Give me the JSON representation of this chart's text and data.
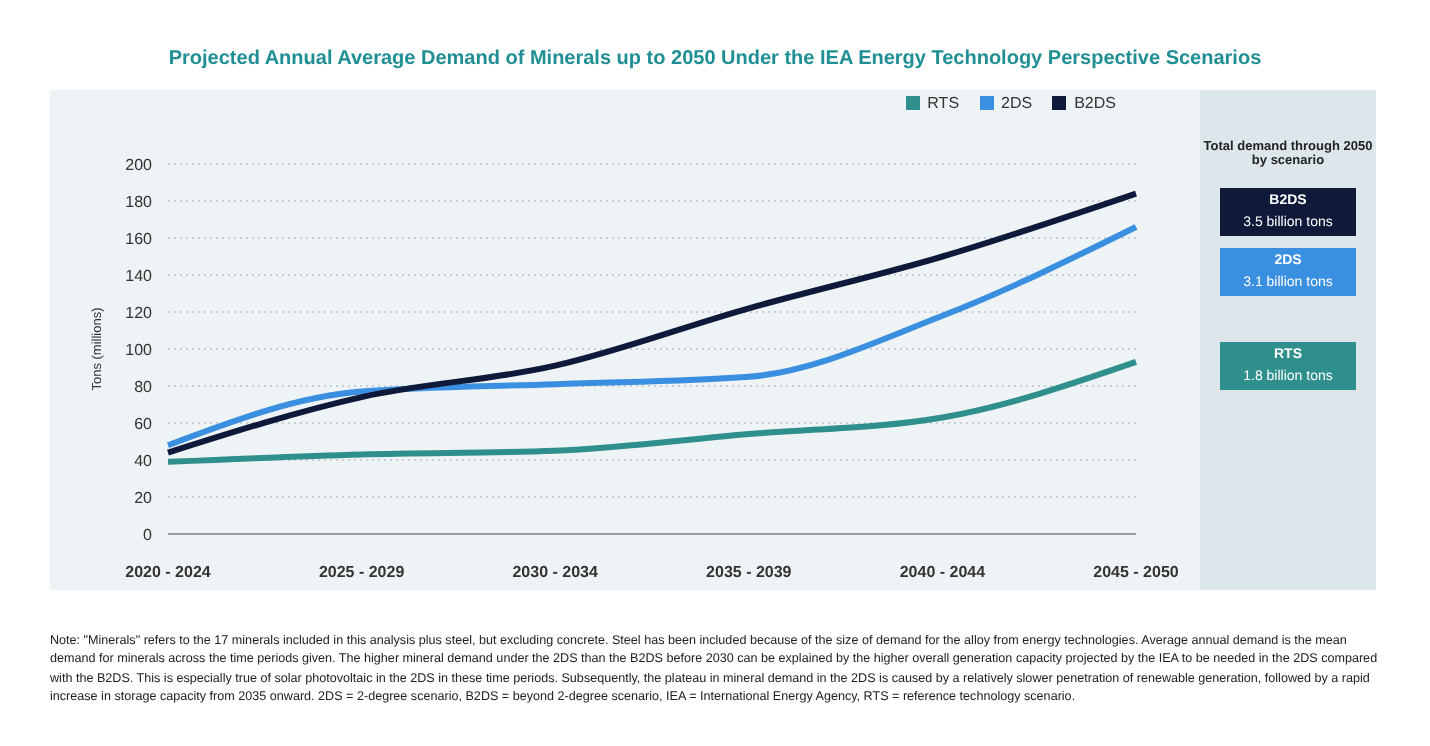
{
  "chart_data": {
    "type": "line",
    "title": "Projected Annual Average Demand of Minerals up to 2050 Under the IEA Energy Technology Perspective Scenarios",
    "ylabel": "Tons (millions)",
    "categories": [
      "2020 - 2024",
      "2025 - 2029",
      "2030 - 2034",
      "2035 - 2039",
      "2040 - 2044",
      "2045 - 2050"
    ],
    "series": [
      {
        "name": "RTS",
        "color": "#2f8f8c",
        "values": [
          39,
          43,
          45,
          54,
          63,
          93
        ]
      },
      {
        "name": "2DS",
        "color": "#3a8fe0",
        "values": [
          48,
          77,
          81,
          85,
          118,
          166
        ]
      },
      {
        "name": "B2DS",
        "color": "#0f1a3a",
        "values": [
          44,
          74,
          91,
          122,
          150,
          184
        ]
      }
    ],
    "ylim": [
      0,
      200
    ],
    "yticks": [
      0,
      20,
      40,
      60,
      80,
      100,
      120,
      140,
      160,
      180,
      200
    ],
    "grid": "y",
    "legend": "top right",
    "marker": "none",
    "line_style": "solid",
    "annotations": [
      "Total demand through 2050 by scenario",
      "B2DS\n3.5 billion tons",
      "2DS\n3.1 billion tons",
      "RTS\n1.8 billion tons",
      "Note: \"Minerals\" refers to the 17 minerals included in this analysis plus steel, but excluding concrete. Steel has been included because of the size of demand for the alloy from energy technologies. Average annual demand is the mean demand for minerals across the time periods given. The higher mineral demand under the 2DS than the B2DS before 2030 can be explained by the higher overall generation capacity projected by the IEA to be needed in the 2DS compared with the B2DS. This is especially true of solar photovoltaic in the 2DS in these time periods. Subsequently, the plateau in mineral demand in the 2DS is caused by a relatively slower penetration of renewable generation, followed by a rapid increase in storage capacity from 2035 onward. 2DS = 2-degree scenario, B2DS = beyond 2-degree scenario, IEA = International Energy Agency, RTS = reference technology scenario."
    ]
  }
}
